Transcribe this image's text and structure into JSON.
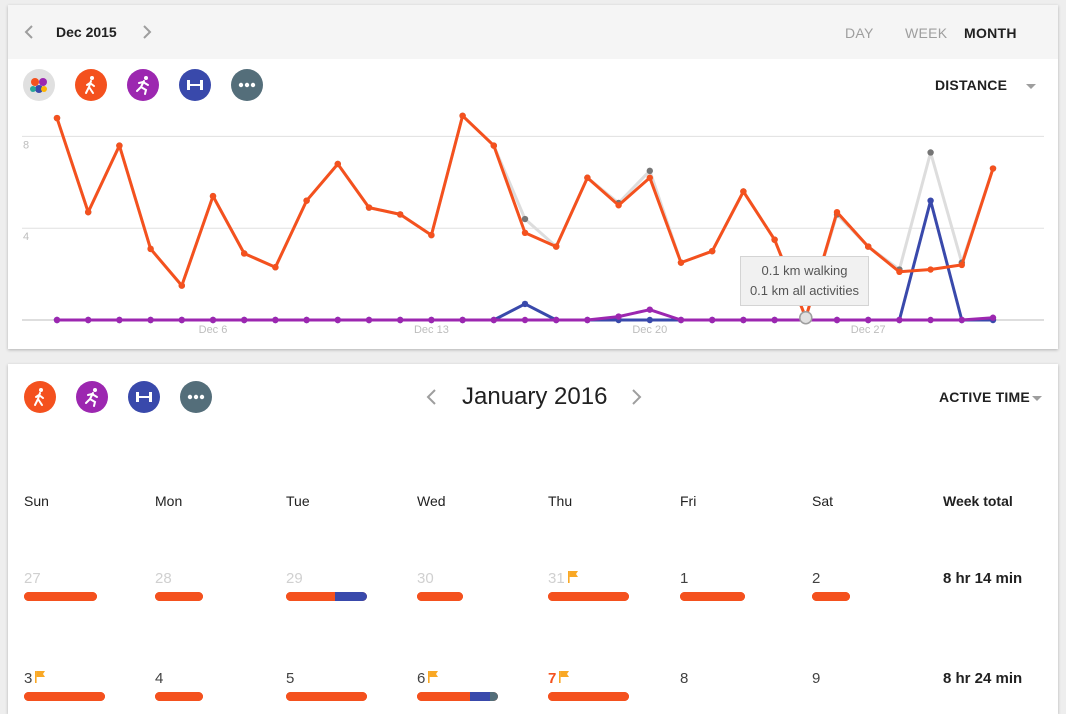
{
  "header": {
    "period_label": "Dec 2015",
    "range_tabs": [
      {
        "label": "DAY",
        "active": false
      },
      {
        "label": "WEEK",
        "active": false
      },
      {
        "label": "MONTH",
        "active": true
      }
    ]
  },
  "top_filters": [
    {
      "name": "all-activities",
      "icon": "activity-dots-icon",
      "color": "#e0e0e0"
    },
    {
      "name": "walking",
      "icon": "walking-icon",
      "color": "#f4511e"
    },
    {
      "name": "running",
      "icon": "running-icon",
      "color": "#9c27b0"
    },
    {
      "name": "strength",
      "icon": "dumbbell-icon",
      "color": "#3949ab"
    },
    {
      "name": "other",
      "icon": "more-icon",
      "color": "#546e7a"
    }
  ],
  "chart_metric": "DISTANCE",
  "chart_data": {
    "type": "line",
    "x": [
      1,
      2,
      3,
      4,
      5,
      6,
      7,
      8,
      9,
      10,
      11,
      12,
      13,
      14,
      15,
      16,
      17,
      18,
      19,
      20,
      21,
      22,
      23,
      24,
      25,
      26,
      27,
      28,
      29,
      30,
      31
    ],
    "x_tick_labels": [
      {
        "x": 6,
        "label": "Dec 6"
      },
      {
        "x": 13,
        "label": "Dec 13"
      },
      {
        "x": 20,
        "label": "Dec 20"
      },
      {
        "x": 27,
        "label": "Dec 27"
      }
    ],
    "y_tick_labels": [
      "4",
      "8"
    ],
    "ylim": [
      0,
      9.5
    ],
    "grid": true,
    "series": [
      {
        "key": "all",
        "color": "#dddddd",
        "values": [
          8.8,
          4.7,
          7.6,
          3.1,
          1.5,
          5.4,
          2.9,
          2.3,
          5.2,
          6.8,
          4.9,
          4.6,
          3.7,
          8.9,
          7.6,
          4.4,
          3.2,
          6.2,
          5.1,
          6.5,
          2.5,
          3.0,
          5.6,
          3.5,
          0.1,
          4.6,
          3.2,
          2.2,
          7.3,
          2.5,
          6.6
        ]
      },
      {
        "key": "walking",
        "color": "#f4511e",
        "values": [
          8.8,
          4.7,
          7.6,
          3.1,
          1.5,
          5.4,
          2.9,
          2.3,
          5.2,
          6.8,
          4.9,
          4.6,
          3.7,
          8.9,
          7.6,
          3.8,
          3.2,
          6.2,
          5.0,
          6.2,
          2.5,
          3.0,
          5.6,
          3.5,
          0.1,
          4.7,
          3.2,
          2.1,
          2.2,
          2.4,
          6.6
        ]
      },
      {
        "key": "running",
        "color": "#9c27b0",
        "values": [
          0,
          0,
          0,
          0,
          0,
          0,
          0,
          0,
          0,
          0,
          0,
          0,
          0,
          0,
          0,
          0,
          0,
          0,
          0.15,
          0.45,
          0,
          0,
          0,
          0,
          0,
          0,
          0,
          0,
          0,
          0,
          0.1
        ]
      },
      {
        "key": "strength",
        "color": "#3949ab",
        "values": [
          0,
          0,
          0,
          0,
          0,
          0,
          0,
          0,
          0,
          0,
          0,
          0,
          0,
          0,
          0,
          0.7,
          0,
          0,
          0,
          0,
          0,
          0,
          0,
          0,
          0,
          0,
          0,
          0,
          5.2,
          0,
          0
        ]
      }
    ],
    "highlight_x": 25,
    "tooltip": {
      "line1": "0.1 km walking",
      "line2": "0.1 km all activities"
    }
  },
  "calendar": {
    "title": "January 2016",
    "metric": "ACTIVE TIME",
    "filters": [
      {
        "name": "walking",
        "icon": "walking-icon",
        "color": "#f4511e"
      },
      {
        "name": "running",
        "icon": "running-icon",
        "color": "#9c27b0"
      },
      {
        "name": "strength",
        "icon": "dumbbell-icon",
        "color": "#3949ab"
      },
      {
        "name": "other",
        "icon": "more-icon",
        "color": "#546e7a"
      }
    ],
    "day_headers": [
      "Sun",
      "Mon",
      "Tue",
      "Wed",
      "Thu",
      "Fri",
      "Sat",
      "Week total"
    ],
    "weeks": [
      {
        "total": "8 hr 14 min",
        "days": [
          {
            "num": "27",
            "state": "prev",
            "flag": false,
            "bar_fraction": 0.58,
            "mix": [
              {
                "c": "#f4511e",
                "f": 1
              }
            ]
          },
          {
            "num": "28",
            "state": "prev",
            "flag": false,
            "bar_fraction": 0.38,
            "mix": [
              {
                "c": "#f4511e",
                "f": 1
              }
            ]
          },
          {
            "num": "29",
            "state": "prev",
            "flag": false,
            "bar_fraction": 0.65,
            "mix": [
              {
                "c": "#f4511e",
                "f": 0.6
              },
              {
                "c": "#3949ab",
                "f": 0.4
              }
            ]
          },
          {
            "num": "30",
            "state": "prev",
            "flag": false,
            "bar_fraction": 0.37,
            "mix": [
              {
                "c": "#f4511e",
                "f": 1
              }
            ]
          },
          {
            "num": "31",
            "state": "prev",
            "flag": true,
            "bar_fraction": 0.65,
            "mix": [
              {
                "c": "#f4511e",
                "f": 1
              }
            ]
          },
          {
            "num": "1",
            "state": "current",
            "flag": false,
            "bar_fraction": 0.52,
            "mix": [
              {
                "c": "#f4511e",
                "f": 1
              }
            ]
          },
          {
            "num": "2",
            "state": "current",
            "flag": false,
            "bar_fraction": 0.3,
            "mix": [
              {
                "c": "#f4511e",
                "f": 1
              }
            ]
          }
        ]
      },
      {
        "total": "8 hr 24 min",
        "days": [
          {
            "num": "3",
            "state": "current",
            "flag": true,
            "bar_fraction": 0.65,
            "mix": [
              {
                "c": "#f4511e",
                "f": 1
              }
            ]
          },
          {
            "num": "4",
            "state": "current",
            "flag": false,
            "bar_fraction": 0.38,
            "mix": [
              {
                "c": "#f4511e",
                "f": 1
              }
            ]
          },
          {
            "num": "5",
            "state": "current",
            "flag": false,
            "bar_fraction": 0.65,
            "mix": [
              {
                "c": "#f4511e",
                "f": 1
              }
            ]
          },
          {
            "num": "6",
            "state": "current",
            "flag": true,
            "bar_fraction": 0.65,
            "mix": [
              {
                "c": "#f4511e",
                "f": 0.65
              },
              {
                "c": "#3949ab",
                "f": 0.25
              },
              {
                "c": "#546e7a",
                "f": 0.1
              }
            ]
          },
          {
            "num": "7",
            "state": "today",
            "flag": true,
            "bar_fraction": 0.65,
            "mix": [
              {
                "c": "#f4511e",
                "f": 1
              }
            ]
          },
          {
            "num": "8",
            "state": "current",
            "flag": false,
            "bar_fraction": 0,
            "mix": []
          },
          {
            "num": "9",
            "state": "current",
            "flag": false,
            "bar_fraction": 0,
            "mix": []
          }
        ]
      }
    ]
  }
}
